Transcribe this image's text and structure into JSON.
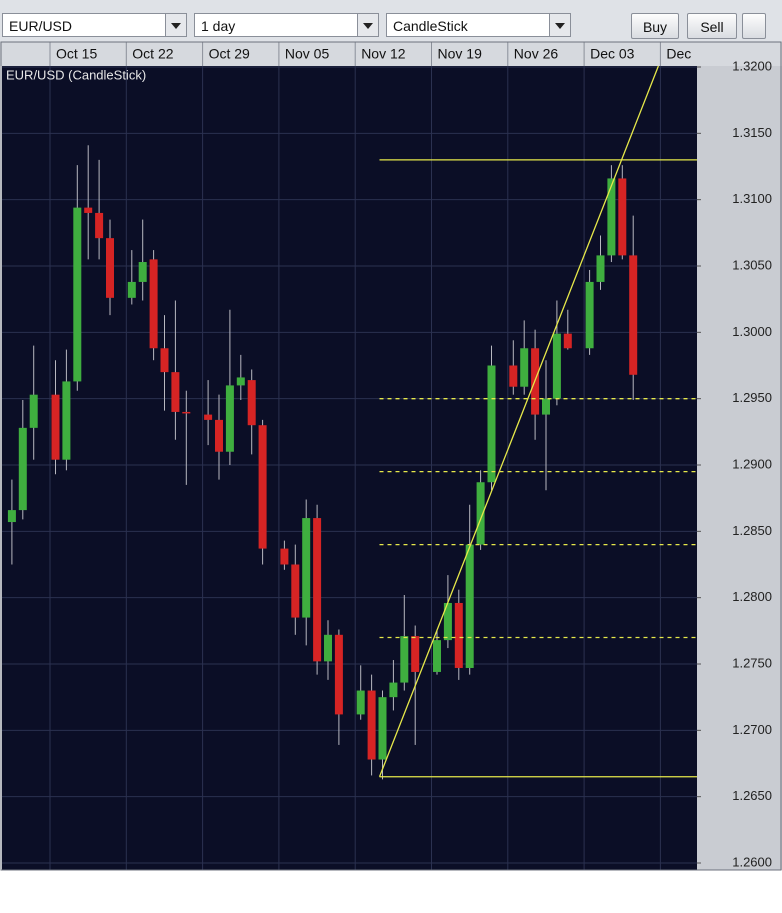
{
  "toolbar": {
    "symbol": "EUR/USD",
    "period": "1 day",
    "chart_type": "CandleStick",
    "buy": "Buy",
    "sell": "Sell"
  },
  "chart_data": {
    "type": "candlestick",
    "title": "EUR/USD (CandleStick)",
    "categories": [
      null,
      null,
      null,
      "Oct 15",
      null,
      null,
      null,
      null,
      null,
      "Oct 22",
      null,
      null,
      null,
      null,
      null,
      "Oct 29",
      null,
      null,
      null,
      null,
      null,
      "Nov 05",
      null,
      null,
      null,
      null,
      null,
      "Nov 12",
      null,
      null,
      null,
      null,
      null,
      "Nov 19",
      null,
      null,
      null,
      null,
      null,
      "Nov 26",
      null,
      null,
      null,
      null,
      null,
      "Dec 03",
      null,
      null,
      null,
      null,
      null,
      "Dec"
    ],
    "open": [
      1.2857,
      1.2866,
      1.2928,
      1.2953,
      1.2904,
      1.2963,
      1.3094,
      1.309,
      1.3071,
      1.3026,
      1.3038,
      1.3055,
      1.2988,
      1.297,
      1.294,
      1.2938,
      1.2934,
      1.291,
      1.296,
      1.2964,
      1.293,
      1.2837,
      1.2825,
      1.2785,
      1.286,
      1.2752,
      1.2772,
      1.2712,
      1.273,
      1.2678,
      1.2725,
      1.2736,
      1.2771,
      1.2744,
      1.2768,
      1.2796,
      1.2747,
      1.284,
      1.2887,
      1.2975,
      1.2959,
      1.2988,
      1.2938,
      1.295,
      1.2999,
      1.2988,
      1.3038,
      1.3058,
      1.3116,
      1.3058,
      null,
      null
    ],
    "high": [
      1.2889,
      1.2949,
      1.299,
      1.2979,
      1.2987,
      1.3126,
      1.3141,
      1.313,
      1.3085,
      1.3062,
      1.3085,
      1.3062,
      1.3013,
      1.3024,
      1.2956,
      1.2964,
      1.2953,
      1.3017,
      1.2983,
      1.2972,
      1.2934,
      1.2843,
      1.284,
      1.2874,
      1.287,
      1.2783,
      1.2776,
      1.2749,
      1.2742,
      1.273,
      1.2753,
      1.2802,
      1.2779,
      1.2776,
      1.2817,
      1.2806,
      1.287,
      1.2896,
      1.299,
      1.2994,
      1.3009,
      1.3002,
      1.2979,
      1.3024,
      1.3017,
      1.3047,
      1.3073,
      1.3126,
      1.3126,
      1.3088,
      null,
      null
    ],
    "low": [
      1.2825,
      1.2859,
      1.2904,
      1.2893,
      1.2896,
      1.2956,
      1.3055,
      1.3055,
      1.3013,
      1.3021,
      1.3024,
      1.2979,
      1.2941,
      1.2919,
      1.2885,
      1.2915,
      1.2889,
      1.29,
      1.2949,
      1.2908,
      1.2825,
      1.2821,
      1.2772,
      1.2764,
      1.2742,
      1.2738,
      1.2689,
      1.2708,
      1.2666,
      1.2663,
      1.2715,
      1.273,
      1.2689,
      1.2742,
      1.2762,
      1.2738,
      1.2742,
      1.2836,
      1.2881,
      1.2953,
      1.2953,
      1.2919,
      1.2881,
      1.2945,
      1.2987,
      1.2983,
      1.3032,
      1.3053,
      1.3055,
      1.2949,
      null,
      null
    ],
    "close": [
      1.2866,
      1.2928,
      1.2953,
      1.2904,
      1.2963,
      1.3094,
      1.309,
      1.3071,
      1.3026,
      1.3038,
      1.3053,
      1.2988,
      1.297,
      1.294,
      1.2939,
      1.2934,
      1.291,
      1.296,
      1.2966,
      1.293,
      1.2837,
      1.2825,
      1.2785,
      1.286,
      1.2752,
      1.2772,
      1.2712,
      1.273,
      1.2678,
      1.2725,
      1.2736,
      1.2771,
      1.2744,
      1.2768,
      1.2796,
      1.2747,
      1.284,
      1.2887,
      1.2975,
      1.2959,
      1.2988,
      1.2938,
      1.295,
      1.2999,
      1.2988,
      1.3038,
      1.3058,
      1.3116,
      1.3058,
      1.2968,
      null,
      null
    ],
    "up_color": "#3fae3f",
    "down_color": "#d62424",
    "ylim": [
      1.26,
      1.32
    ],
    "yticks": [
      {
        "value": 1.26,
        "label": "1.2600"
      },
      {
        "value": 1.265,
        "label": "1.2650"
      },
      {
        "value": 1.27,
        "label": "1.2700"
      },
      {
        "value": 1.275,
        "label": "1.2750"
      },
      {
        "value": 1.28,
        "label": "1.2800"
      },
      {
        "value": 1.285,
        "label": "1.2850"
      },
      {
        "value": 1.29,
        "label": "1.2900"
      },
      {
        "value": 1.295,
        "label": "1.2950"
      },
      {
        "value": 1.3,
        "label": "1.3000"
      },
      {
        "value": 1.305,
        "label": "1.3050"
      },
      {
        "value": 1.31,
        "label": "1.3100"
      },
      {
        "value": 1.315,
        "label": "1.3150"
      },
      {
        "value": 1.32,
        "label": "1.3200"
      }
    ],
    "grid": true,
    "hlines": [
      1.313,
      1.2665
    ],
    "levels": [
      1.295,
      1.2895,
      1.284,
      1.277
    ]
  }
}
